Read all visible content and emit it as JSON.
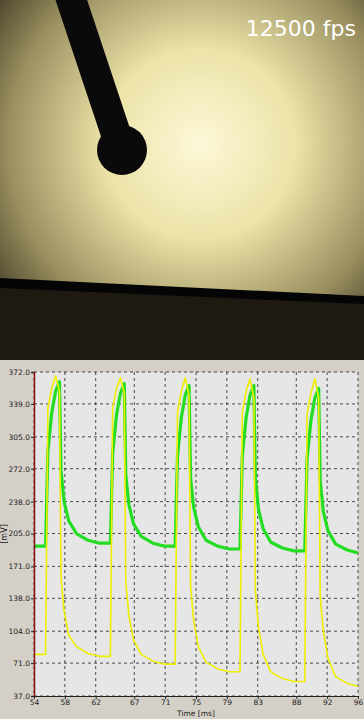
{
  "chart_data": {
    "type": "line",
    "annotations": [
      "12500 fps"
    ],
    "xlabel": "Time [ms]",
    "ylabel": "[mV]",
    "x": [
      54,
      55.5,
      55.8,
      56.3,
      56.8,
      57.3,
      57.5,
      57.9,
      58.5,
      59.5,
      61.0,
      62.5,
      63.9,
      64.2,
      64.7,
      65.2,
      65.7,
      65.9,
      66.3,
      66.9,
      67.9,
      69.4,
      70.9,
      72.3,
      72.6,
      73.1,
      73.6,
      74.1,
      74.3,
      74.7,
      75.3,
      76.3,
      77.8,
      79.3,
      80.7,
      81.0,
      81.5,
      82.0,
      82.5,
      82.7,
      83.1,
      83.7,
      84.7,
      86.2,
      87.7,
      89.1,
      89.4,
      89.9,
      90.4,
      90.9,
      91.1,
      91.5,
      92.1,
      93.1,
      94.6,
      96.0
    ],
    "series": [
      {
        "color": "#22dd22",
        "values": [
          192,
          192,
          290,
          330,
          352,
          362,
          270,
          238,
          218,
          205,
          198,
          195,
          195,
          288,
          328,
          350,
          360,
          265,
          235,
          215,
          202,
          195,
          192,
          192,
          285,
          325,
          348,
          358,
          262,
          232,
          212,
          198,
          192,
          189,
          189,
          285,
          325,
          348,
          358,
          262,
          230,
          210,
          196,
          190,
          187,
          187,
          283,
          322,
          345,
          355,
          260,
          228,
          208,
          194,
          188,
          185
        ]
      },
      {
        "color": "#eeee00",
        "values": [
          80,
          80,
          335,
          355,
          368,
          352,
          160,
          125,
          100,
          88,
          81,
          78,
          78,
          335,
          355,
          366,
          350,
          155,
          120,
          95,
          80,
          73,
          70,
          70,
          330,
          352,
          366,
          348,
          150,
          115,
          88,
          72,
          65,
          62,
          62,
          330,
          352,
          365,
          345,
          145,
          108,
          80,
          62,
          55,
          52,
          52,
          328,
          350,
          365,
          345,
          140,
          105,
          76,
          57,
          50,
          47
        ]
      }
    ],
    "xlim": [
      54,
      96
    ],
    "ylim": [
      37,
      372
    ],
    "xticks": [
      54,
      58,
      62,
      67,
      71,
      75,
      79,
      83,
      88,
      92,
      96
    ],
    "yticks": [
      {
        "value": 372,
        "label": "372.0"
      },
      {
        "value": 339,
        "label": "339.0"
      },
      {
        "value": 305,
        "label": "305.0"
      },
      {
        "value": 272,
        "label": "272.0"
      },
      {
        "value": 238,
        "label": "238.0"
      },
      {
        "value": 205,
        "label": "205.0"
      },
      {
        "value": 171,
        "label": "171.0"
      },
      {
        "value": 138,
        "label": "138.0"
      },
      {
        "value": 104,
        "label": "104.0"
      },
      {
        "value": 71,
        "label": "71.0"
      },
      {
        "value": 37,
        "label": "37.0"
      }
    ],
    "grid": true
  }
}
